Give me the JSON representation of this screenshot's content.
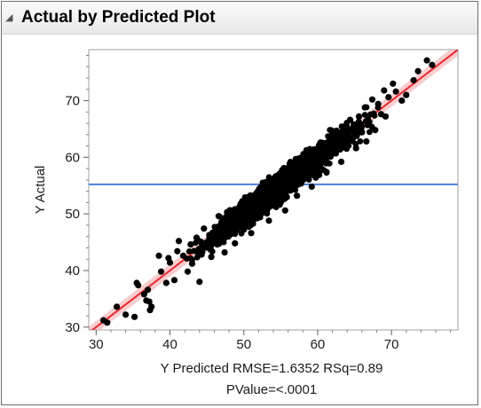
{
  "panel": {
    "title": "Actual by Predicted Plot",
    "disclosure_icon": "triangle-down-icon"
  },
  "chart_data": {
    "type": "scatter",
    "title": "Actual by Predicted Plot",
    "xlabel": "Y Predicted RMSE=1.6352 RSq=0.89",
    "xlabel_line2": "PValue=<.0001",
    "ylabel": "Y Actual",
    "xlim": [
      29,
      79
    ],
    "ylim": [
      29.5,
      79
    ],
    "x_ticks": [
      30,
      40,
      50,
      60,
      70
    ],
    "y_ticks": [
      30,
      40,
      50,
      60,
      70
    ],
    "reference_lines": {
      "fit_line": {
        "slope": 1,
        "intercept": 0,
        "color": "#e8282e",
        "band_color": "#f4a3a6"
      },
      "mean_line": {
        "y": 55.2,
        "color": "#4a7fe0"
      }
    },
    "points": [
      [
        31.0,
        31.2
      ],
      [
        32.8,
        33.6
      ],
      [
        34.0,
        32.2
      ],
      [
        35.2,
        31.8
      ],
      [
        35.5,
        37.8
      ],
      [
        35.7,
        37.4
      ],
      [
        36.5,
        35.8
      ],
      [
        36.8,
        34.7
      ],
      [
        37.0,
        36.6
      ],
      [
        37.2,
        34.5
      ],
      [
        37.5,
        33.6
      ],
      [
        38.5,
        42.6
      ],
      [
        38.8,
        39.8
      ],
      [
        39.5,
        37.8
      ],
      [
        39.8,
        42.2
      ],
      [
        40.0,
        41.4
      ],
      [
        40.6,
        38.3
      ],
      [
        41.0,
        43.4
      ],
      [
        41.2,
        45.2
      ],
      [
        41.8,
        42.6
      ],
      [
        42.4,
        39.8
      ],
      [
        42.8,
        44.6
      ],
      [
        43.0,
        41.2
      ],
      [
        43.6,
        45.8
      ],
      [
        44.0,
        38.0
      ],
      [
        44.0,
        43.8
      ],
      [
        44.6,
        47.4
      ],
      [
        45.2,
        44.2
      ],
      [
        45.6,
        42.4
      ],
      [
        46.0,
        46.8
      ],
      [
        46.4,
        44.6
      ],
      [
        46.6,
        49.6
      ],
      [
        47.0,
        45.8
      ],
      [
        47.4,
        43.2
      ],
      [
        47.8,
        48.2
      ],
      [
        48.2,
        46.4
      ],
      [
        48.6,
        50.4
      ],
      [
        48.8,
        44.8
      ],
      [
        49.2,
        48.6
      ],
      [
        49.6,
        51.8
      ],
      [
        50.0,
        47.2
      ],
      [
        50.3,
        49.8
      ],
      [
        50.8,
        52.6
      ],
      [
        51.0,
        46.6
      ],
      [
        51.4,
        50.8
      ],
      [
        51.8,
        53.8
      ],
      [
        52.2,
        49.4
      ],
      [
        52.6,
        55.2
      ],
      [
        53.0,
        51.4
      ],
      [
        53.4,
        48.8
      ],
      [
        53.8,
        54.2
      ],
      [
        54.2,
        56.4
      ],
      [
        54.6,
        52.2
      ],
      [
        55.0,
        55.0
      ],
      [
        55.3,
        57.8
      ],
      [
        55.6,
        50.6
      ],
      [
        56.0,
        54.6
      ],
      [
        56.4,
        58.6
      ],
      [
        56.8,
        55.8
      ],
      [
        57.2,
        53.2
      ],
      [
        57.6,
        59.2
      ],
      [
        58.0,
        56.4
      ],
      [
        58.4,
        60.4
      ],
      [
        58.8,
        57.2
      ],
      [
        59.2,
        54.8
      ],
      [
        59.6,
        61.4
      ],
      [
        60.0,
        58.6
      ],
      [
        60.4,
        62.6
      ],
      [
        60.8,
        59.8
      ],
      [
        61.2,
        57.4
      ],
      [
        61.6,
        63.6
      ],
      [
        62.0,
        60.6
      ],
      [
        62.4,
        64.2
      ],
      [
        62.8,
        61.8
      ],
      [
        63.2,
        59.2
      ],
      [
        63.6,
        65.4
      ],
      [
        64.0,
        62.8
      ],
      [
        64.4,
        66.6
      ],
      [
        64.8,
        63.4
      ],
      [
        65.2,
        61.6
      ],
      [
        65.6,
        67.2
      ],
      [
        66.0,
        64.4
      ],
      [
        66.4,
        68.8
      ],
      [
        66.6,
        62.8
      ],
      [
        67.0,
        66.2
      ],
      [
        67.4,
        70.2
      ],
      [
        67.8,
        64.8
      ],
      [
        68.2,
        69.4
      ],
      [
        68.6,
        67.6
      ],
      [
        69.0,
        71.8
      ],
      [
        69.2,
        67.2
      ],
      [
        69.6,
        70.6
      ],
      [
        70.2,
        73.0
      ],
      [
        70.6,
        71.6
      ],
      [
        71.4,
        70.0
      ],
      [
        72.0,
        71.0
      ],
      [
        73.0,
        73.6
      ],
      [
        73.6,
        75.2
      ],
      [
        74.8,
        77.1
      ],
      [
        75.5,
        76.3
      ],
      [
        37.3,
        33.0
      ],
      [
        31.5,
        30.8
      ]
    ]
  }
}
